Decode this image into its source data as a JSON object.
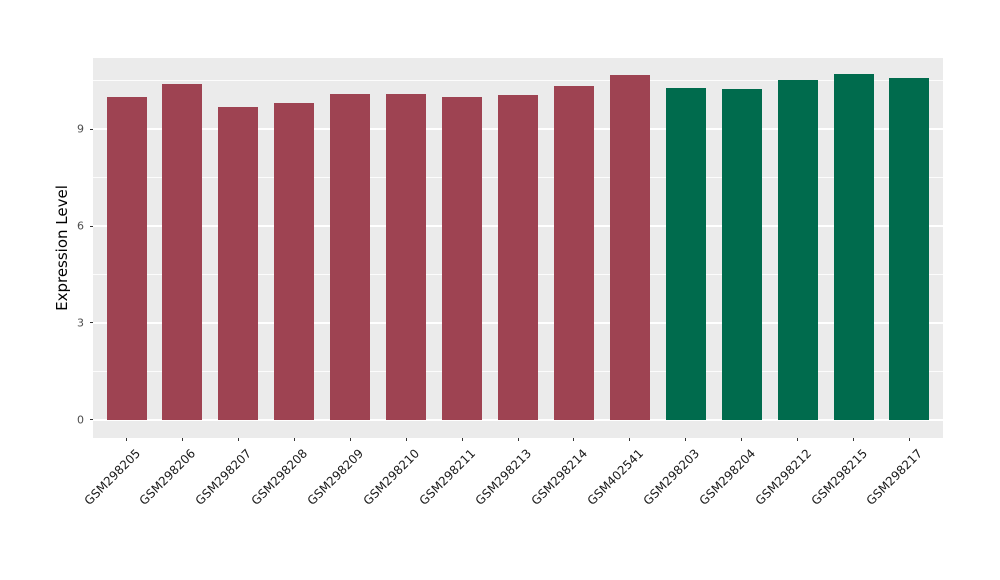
{
  "chart_data": {
    "type": "bar",
    "title": "",
    "xlabel": "",
    "ylabel": "Expression Level",
    "categories": [
      "GSM298205",
      "GSM298206",
      "GSM298207",
      "GSM298208",
      "GSM298209",
      "GSM298210",
      "GSM298211",
      "GSM298213",
      "GSM298214",
      "GSM402541",
      "GSM298203",
      "GSM298204",
      "GSM298212",
      "GSM298215",
      "GSM298217"
    ],
    "values": [
      10.0,
      10.4,
      9.67,
      9.8,
      10.1,
      10.1,
      10.0,
      10.07,
      10.33,
      10.67,
      10.27,
      10.24,
      10.53,
      10.7,
      10.57
    ],
    "bar_colors": [
      "#9E4352",
      "#9E4352",
      "#9E4352",
      "#9E4352",
      "#9E4352",
      "#9E4352",
      "#9E4352",
      "#9E4352",
      "#9E4352",
      "#9E4352",
      "#006B4D",
      "#006B4D",
      "#006B4D",
      "#006B4D",
      "#006B4D"
    ],
    "group_colors": {
      "maroon": "#9E4352",
      "green": "#006B4D"
    },
    "y_ticks": [
      0,
      3,
      6,
      9
    ],
    "y_minor_gridlines": [
      1.5,
      4.5,
      7.5,
      10.5
    ],
    "ylim": [
      -0.56,
      11.2
    ],
    "grid": true,
    "legend": false,
    "panel_bg": "#EBEBEB",
    "grid_color": "#FFFFFF",
    "axis_text_color": "#4D4D4D",
    "tick_color": "#333333"
  }
}
